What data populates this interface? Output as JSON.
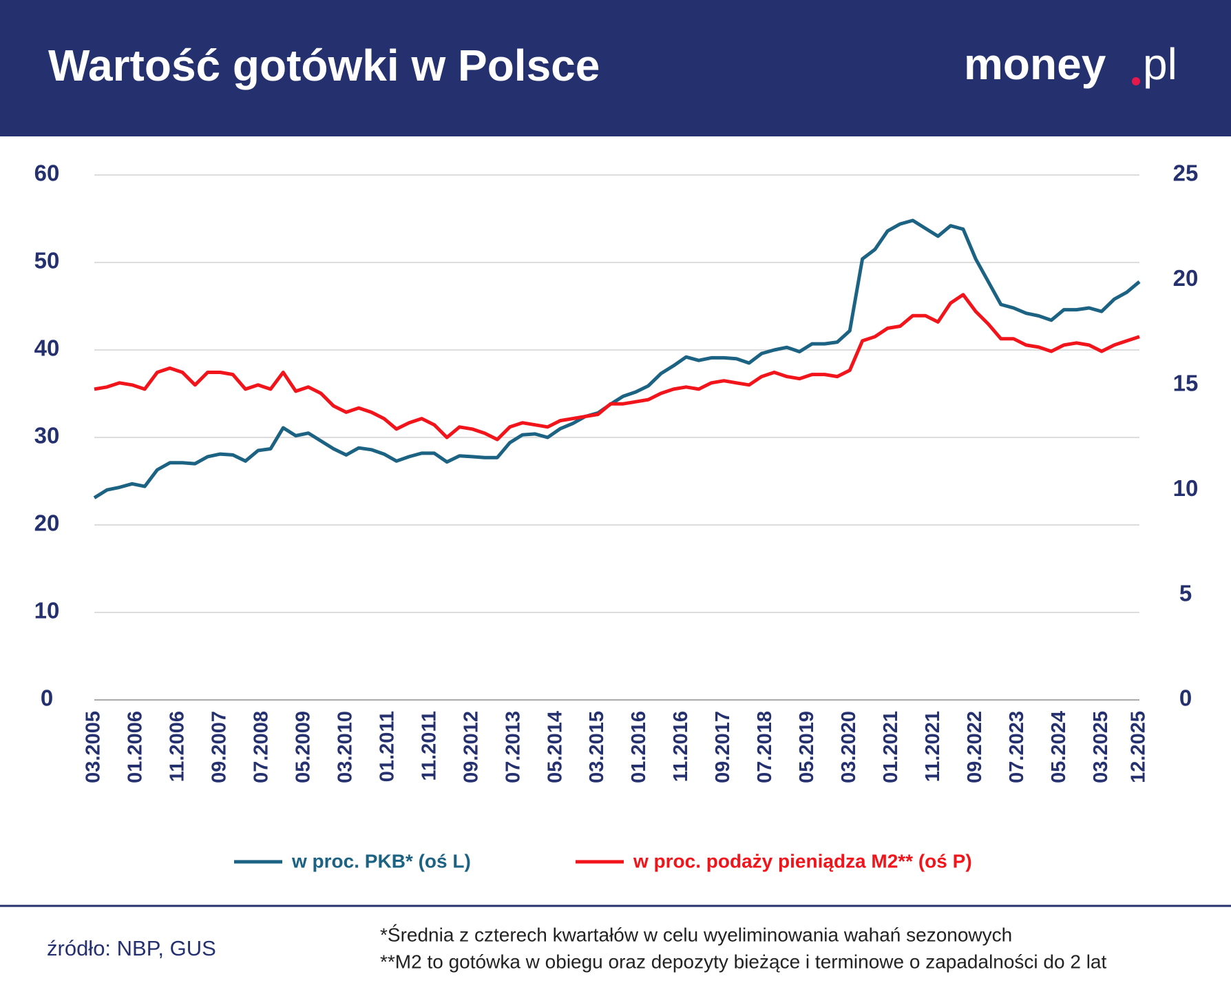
{
  "chart_data": {
    "type": "line",
    "title": "Wartość gotówki w Polsce",
    "logo": "money",
    "logo_suffix": "pl",
    "x": [
      "03.2005",
      "06.2005",
      "09.2005",
      "12.2005",
      "03.2006",
      "06.2006",
      "09.2006",
      "12.2006",
      "03.2007",
      "06.2007",
      "09.2007",
      "12.2007",
      "03.2008",
      "06.2008",
      "09.2008",
      "12.2008",
      "03.2009",
      "06.2009",
      "09.2009",
      "12.2009",
      "03.2010",
      "06.2010",
      "09.2010",
      "12.2010",
      "03.2011",
      "06.2011",
      "09.2011",
      "12.2011",
      "03.2012",
      "06.2012",
      "09.2012",
      "12.2012",
      "03.2013",
      "06.2013",
      "09.2013",
      "12.2013",
      "03.2014",
      "06.2014",
      "09.2014",
      "12.2014",
      "03.2015",
      "06.2015",
      "09.2015",
      "12.2015",
      "03.2016",
      "06.2016",
      "09.2016",
      "12.2016",
      "03.2017",
      "06.2017",
      "09.2017",
      "12.2017",
      "03.2018",
      "06.2018",
      "09.2018",
      "12.2018",
      "03.2019",
      "06.2019",
      "09.2019",
      "12.2019",
      "03.2020",
      "06.2020",
      "09.2020",
      "12.2020",
      "03.2021",
      "06.2021",
      "09.2021",
      "12.2021",
      "03.2022",
      "06.2022",
      "09.2022",
      "12.2022",
      "03.2023",
      "06.2023",
      "09.2023",
      "12.2023",
      "03.2024",
      "06.2024",
      "09.2024",
      "12.2024",
      "03.2025",
      "06.2025",
      "09.2025",
      "12.2025"
    ],
    "xticks": [
      "03.2005",
      "01.2006",
      "11.2006",
      "09.2007",
      "07.2008",
      "05.2009",
      "03.2010",
      "01.2011",
      "11.2011",
      "09.2012",
      "07.2013",
      "05.2014",
      "03.2015",
      "01.2016",
      "11.2016",
      "09.2017",
      "07.2018",
      "05.2019",
      "03.2020",
      "01.2021",
      "11.2021",
      "09.2022",
      "07.2023",
      "05.2024",
      "03.2025",
      "12.2025"
    ],
    "series": [
      {
        "name": "w proc. PKB* (oś L)",
        "color": "#1b6283",
        "values": [
          23.1,
          24.0,
          24.3,
          24.7,
          24.4,
          26.3,
          27.1,
          27.1,
          27.0,
          27.8,
          28.1,
          28.0,
          27.3,
          28.5,
          28.7,
          31.1,
          30.2,
          30.5,
          29.6,
          28.7,
          28.0,
          28.8,
          28.6,
          28.1,
          27.3,
          27.8,
          28.2,
          28.2,
          27.2,
          27.9,
          27.8,
          27.7,
          27.7,
          29.4,
          30.3,
          30.4,
          30.0,
          31.0,
          31.6,
          32.4,
          32.8,
          33.8,
          34.7,
          35.2,
          35.9,
          37.3,
          38.2,
          39.2,
          38.8,
          39.1,
          39.1,
          39.0,
          38.5,
          39.6,
          40.0,
          40.3,
          39.8,
          40.7,
          40.7,
          40.9,
          42.2,
          50.4,
          51.5,
          53.6,
          54.4,
          54.8,
          53.9,
          53.0,
          54.2,
          53.8,
          50.4,
          47.8,
          45.2,
          44.8,
          44.2,
          43.9,
          43.4,
          44.6,
          44.6,
          44.8,
          44.4,
          45.8,
          46.6,
          47.8
        ]
      },
      {
        "name": "w proc. podaży pieniądza M2** (oś P)",
        "color": "#f2141b",
        "axis": "y2",
        "values": [
          14.8,
          14.9,
          15.1,
          15.0,
          14.8,
          15.6,
          15.8,
          15.6,
          15.0,
          15.6,
          15.6,
          15.5,
          14.8,
          15.0,
          14.8,
          15.6,
          14.7,
          14.9,
          14.6,
          14.0,
          13.7,
          13.9,
          13.7,
          13.4,
          12.9,
          13.2,
          13.4,
          13.1,
          12.5,
          13.0,
          12.9,
          12.7,
          12.4,
          13.0,
          13.2,
          13.1,
          13.0,
          13.3,
          13.4,
          13.5,
          13.6,
          14.1,
          14.1,
          14.2,
          14.3,
          14.6,
          14.8,
          14.9,
          14.8,
          15.1,
          15.2,
          15.1,
          15.0,
          15.4,
          15.6,
          15.4,
          15.3,
          15.5,
          15.5,
          15.4,
          15.7,
          17.1,
          17.3,
          17.7,
          17.8,
          18.3,
          18.3,
          18.0,
          18.9,
          19.3,
          18.5,
          17.9,
          17.2,
          17.2,
          16.9,
          16.8,
          16.6,
          16.9,
          17.0,
          16.9,
          16.6,
          16.9,
          17.1,
          17.3
        ]
      }
    ],
    "ylim": [
      0,
      60
    ],
    "yticks": [
      0,
      10,
      20,
      30,
      40,
      50,
      60
    ],
    "y2lim": [
      0,
      25
    ],
    "y2ticks": [
      0,
      5,
      10,
      15,
      20,
      25
    ],
    "grid": true,
    "source": "źródło: NBP, GUS",
    "notes": [
      "*Średnia z czterech kwartałów w celu wyeliminowania wahań sezonowych",
      "**M2 to gotówka w obiegu oraz depozyty bieżące i terminowe o zapadalności do 2 lat"
    ]
  }
}
